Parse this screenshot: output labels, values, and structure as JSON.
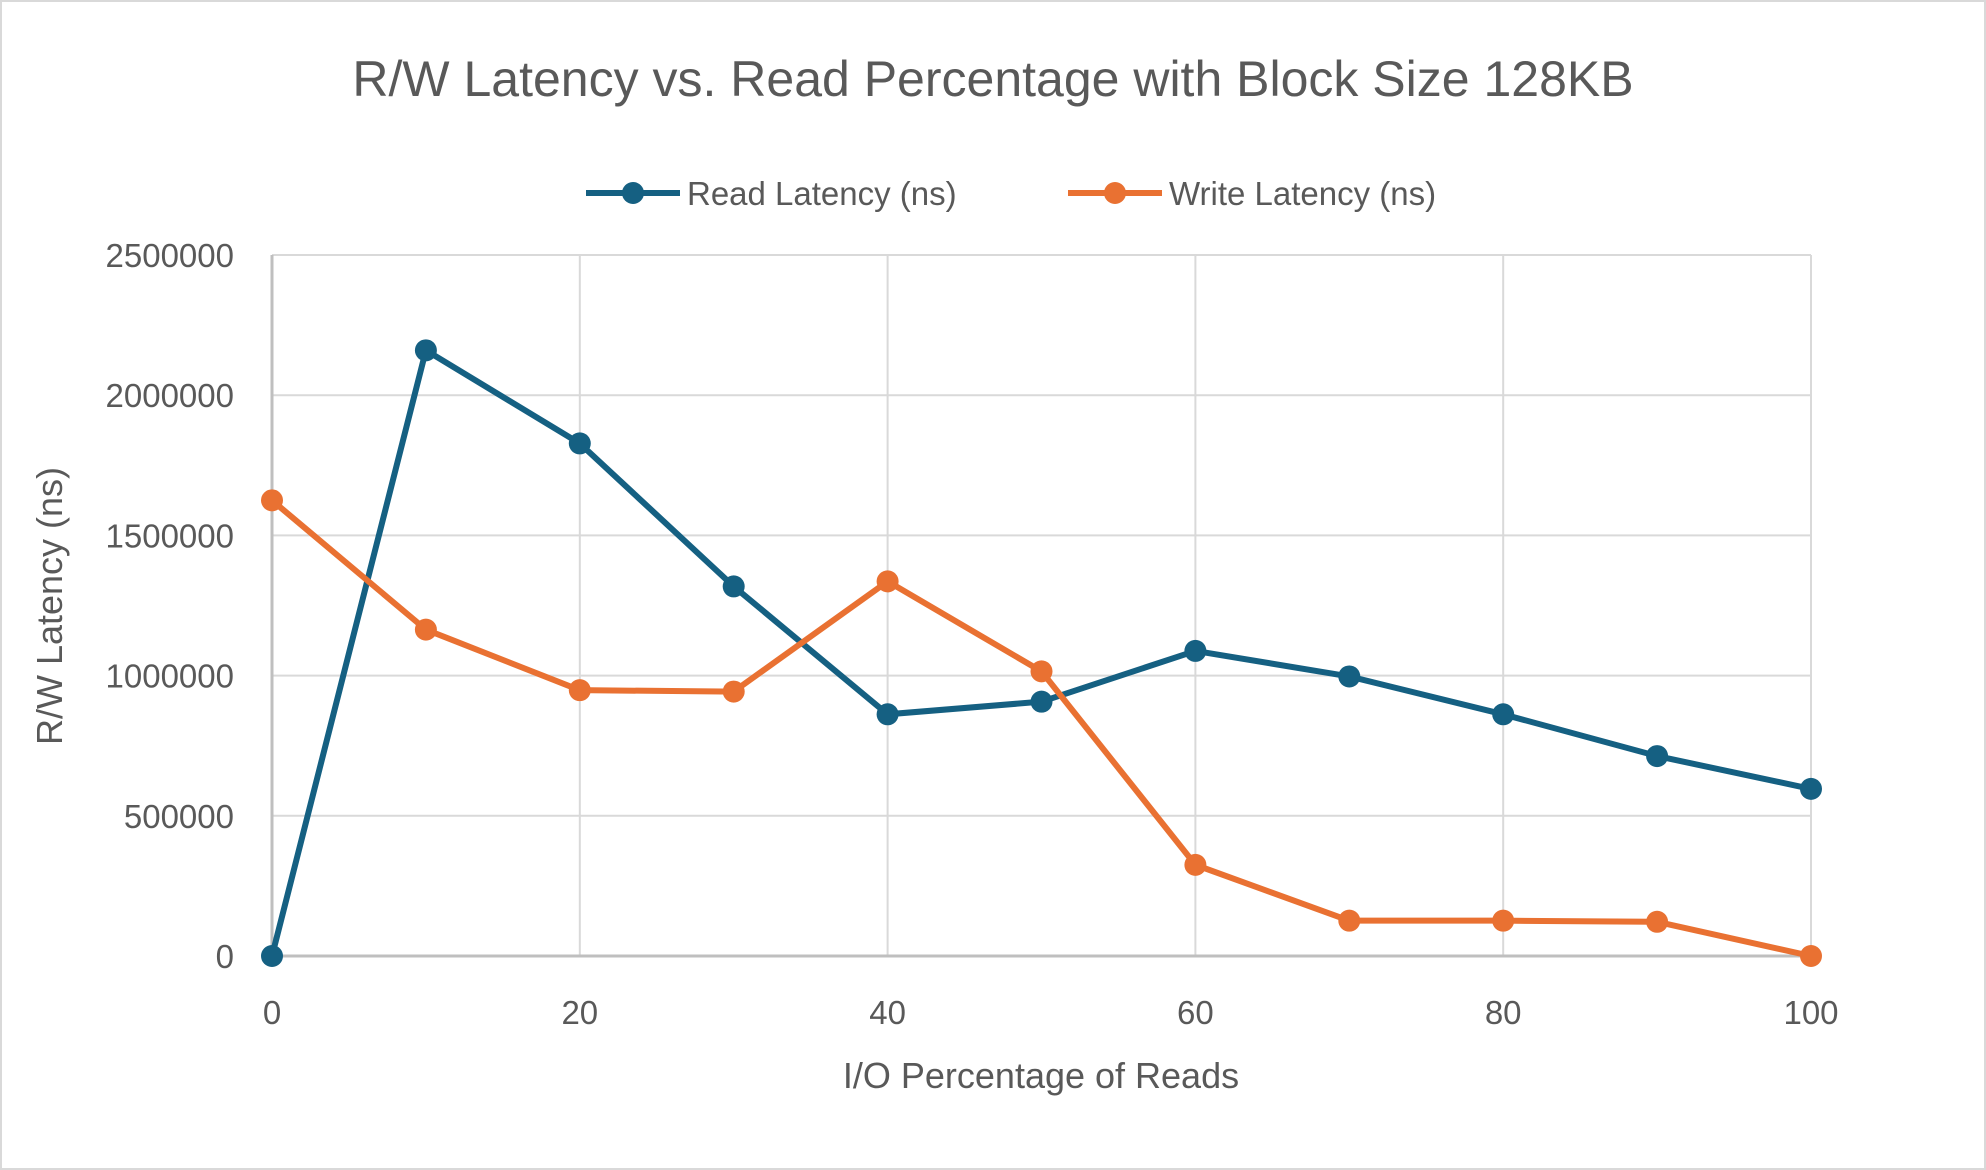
{
  "chart_data": {
    "type": "line",
    "title": "R/W Latency vs. Read Percentage with Block Size 128KB",
    "xlabel": "I/O Percentage of Reads",
    "ylabel": "R/W Latency (ns)",
    "xlim": [
      0,
      100
    ],
    "ylim": [
      0,
      2500000
    ],
    "xticks": [
      0,
      20,
      40,
      60,
      80,
      100
    ],
    "yticks": [
      0,
      500000,
      1000000,
      1500000,
      2000000,
      2500000
    ],
    "grid": true,
    "legend_position": "top",
    "x": [
      0,
      10,
      20,
      30,
      40,
      50,
      60,
      70,
      80,
      90,
      100
    ],
    "series": [
      {
        "name": "Read Latency (ns)",
        "color": "#156082",
        "values": [
          0,
          2160000,
          1828000,
          1318000,
          862000,
          907000,
          1088000,
          997000,
          862000,
          713000,
          596000
        ]
      },
      {
        "name": "Write Latency (ns)",
        "color": "#E97132",
        "values": [
          1625000,
          1164000,
          948000,
          943000,
          1336000,
          1015000,
          325000,
          126000,
          126000,
          122000,
          0
        ]
      }
    ]
  }
}
